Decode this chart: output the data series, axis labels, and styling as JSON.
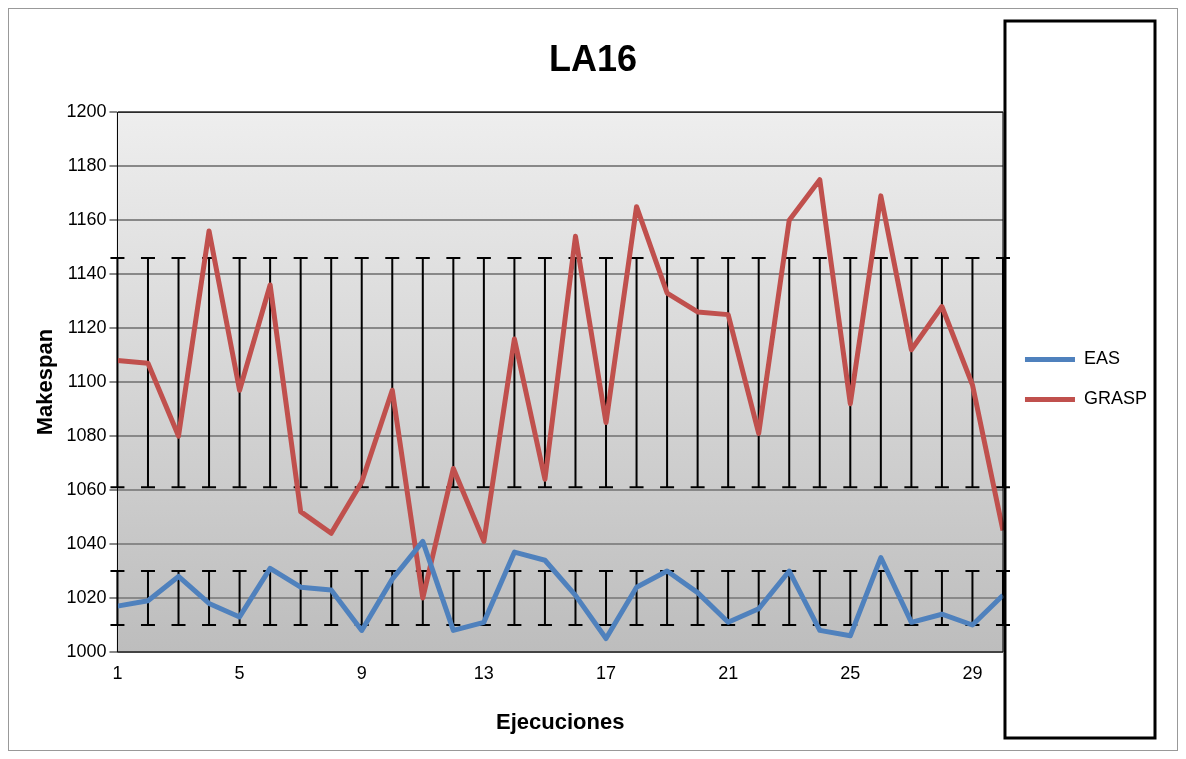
{
  "chart_data": {
    "type": "line",
    "title": "LA16",
    "xlabel": "Ejecuciones",
    "ylabel": "Makespan",
    "categories": [
      "1",
      null,
      null,
      null,
      "5",
      null,
      null,
      null,
      "9",
      null,
      null,
      null,
      "13",
      null,
      null,
      null,
      "17",
      null,
      null,
      null,
      "21",
      null,
      null,
      null,
      "25",
      null,
      null,
      null,
      "29",
      null
    ],
    "series": [
      {
        "name": "EAS",
        "color": "#4f81bd",
        "values": [
          1017,
          1019,
          1028,
          1018,
          1013,
          1031,
          1024,
          1023,
          1008,
          1027,
          1041,
          1008,
          1011,
          1037,
          1034,
          1021,
          1005,
          1024,
          1030,
          1022,
          1011,
          1016,
          1030,
          1008,
          1006,
          1035,
          1011,
          1014,
          1010,
          1021
        ],
        "errors": [
          [
            1010,
            1030
          ],
          [
            1010,
            1030
          ],
          [
            1010,
            1030
          ],
          [
            1010,
            1030
          ],
          [
            1010,
            1030
          ],
          [
            1010,
            1030
          ],
          [
            1010,
            1030
          ],
          [
            1010,
            1030
          ],
          [
            1010,
            1030
          ],
          [
            1010,
            1030
          ],
          [
            1010,
            1030
          ],
          [
            1010,
            1030
          ],
          [
            1010,
            1030
          ],
          [
            1010,
            1030
          ],
          [
            1010,
            1030
          ],
          [
            1010,
            1030
          ],
          [
            1010,
            1030
          ],
          [
            1010,
            1030
          ],
          [
            1010,
            1030
          ],
          [
            1010,
            1030
          ],
          [
            1010,
            1030
          ],
          [
            1010,
            1030
          ],
          [
            1010,
            1030
          ],
          [
            1010,
            1030
          ],
          [
            1010,
            1030
          ],
          [
            1010,
            1030
          ],
          [
            1010,
            1030
          ],
          [
            1010,
            1030
          ],
          [
            1010,
            1030
          ],
          [
            1010,
            1030
          ]
        ]
      },
      {
        "name": "GRASP",
        "color": "#c0504d",
        "values": [
          1108,
          1107,
          1080,
          1156,
          1097,
          1136,
          1052,
          1044,
          1063,
          1097,
          1020,
          1068,
          1041,
          1116,
          1064,
          1154,
          1085,
          1165,
          1133,
          1126,
          1125,
          1081,
          1160,
          1175,
          1092,
          1169,
          1112,
          1128,
          1099,
          1045
        ],
        "errors": [
          [
            1061,
            1146
          ],
          [
            1061,
            1146
          ],
          [
            1061,
            1146
          ],
          [
            1061,
            1146
          ],
          [
            1061,
            1146
          ],
          [
            1061,
            1146
          ],
          [
            1061,
            1146
          ],
          [
            1061,
            1146
          ],
          [
            1061,
            1146
          ],
          [
            1061,
            1146
          ],
          [
            1061,
            1146
          ],
          [
            1061,
            1146
          ],
          [
            1061,
            1146
          ],
          [
            1061,
            1146
          ],
          [
            1061,
            1146
          ],
          [
            1061,
            1146
          ],
          [
            1061,
            1146
          ],
          [
            1061,
            1146
          ],
          [
            1061,
            1146
          ],
          [
            1061,
            1146
          ],
          [
            1061,
            1146
          ],
          [
            1061,
            1146
          ],
          [
            1061,
            1146
          ],
          [
            1061,
            1146
          ],
          [
            1061,
            1146
          ],
          [
            1061,
            1146
          ],
          [
            1061,
            1146
          ],
          [
            1061,
            1146
          ],
          [
            1061,
            1146
          ],
          [
            1061,
            1146
          ]
        ]
      }
    ],
    "ylim": [
      1000,
      1200
    ],
    "yticks": [
      1000,
      1020,
      1040,
      1060,
      1080,
      1100,
      1120,
      1140,
      1160,
      1180,
      1200
    ],
    "grid": "y",
    "legend": "right",
    "marker": "none",
    "line_style": "solid"
  }
}
